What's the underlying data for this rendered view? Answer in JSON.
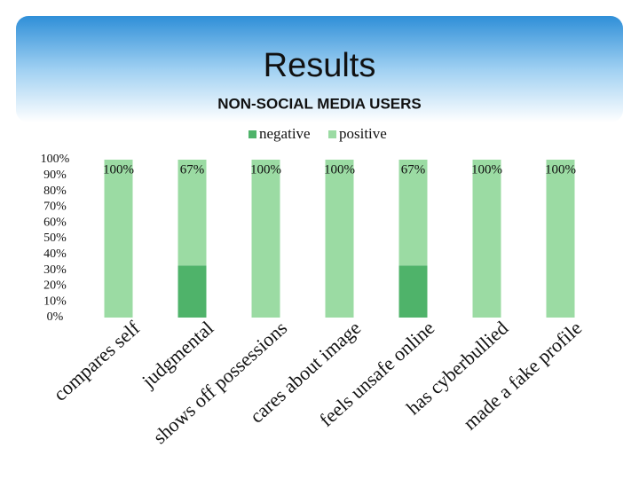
{
  "slide_title": "Results",
  "chart_data": {
    "type": "stacked_bar",
    "title": "NON-SOCIAL MEDIA USERS",
    "categories": [
      "compares self",
      "judgmental",
      "shows off possessions",
      "cares about image",
      "feels unsafe online",
      "has cyberbullied",
      "made a fake profile"
    ],
    "series": [
      {
        "name": "negative",
        "color": "#4fb36a",
        "values": [
          0,
          33,
          0,
          0,
          33,
          0,
          0
        ]
      },
      {
        "name": "positive",
        "color": "#9bdba3",
        "values": [
          100,
          67,
          100,
          100,
          67,
          100,
          100
        ],
        "value_labels": [
          "100%",
          "67%",
          "100%",
          "100%",
          "67%",
          "100%",
          "100%"
        ]
      }
    ],
    "ylim": [
      0,
      100
    ],
    "yticks": [
      {
        "value": 0,
        "label": "0%"
      },
      {
        "value": 10,
        "label": "10%"
      },
      {
        "value": 20,
        "label": "20%"
      },
      {
        "value": 30,
        "label": "30%"
      },
      {
        "value": 40,
        "label": "40%"
      },
      {
        "value": 50,
        "label": "50%"
      },
      {
        "value": 60,
        "label": "60%"
      },
      {
        "value": 70,
        "label": "70%"
      },
      {
        "value": 80,
        "label": "80%"
      },
      {
        "value": 90,
        "label": "90%"
      },
      {
        "value": 100,
        "label": "100%"
      }
    ],
    "legend": "top"
  }
}
